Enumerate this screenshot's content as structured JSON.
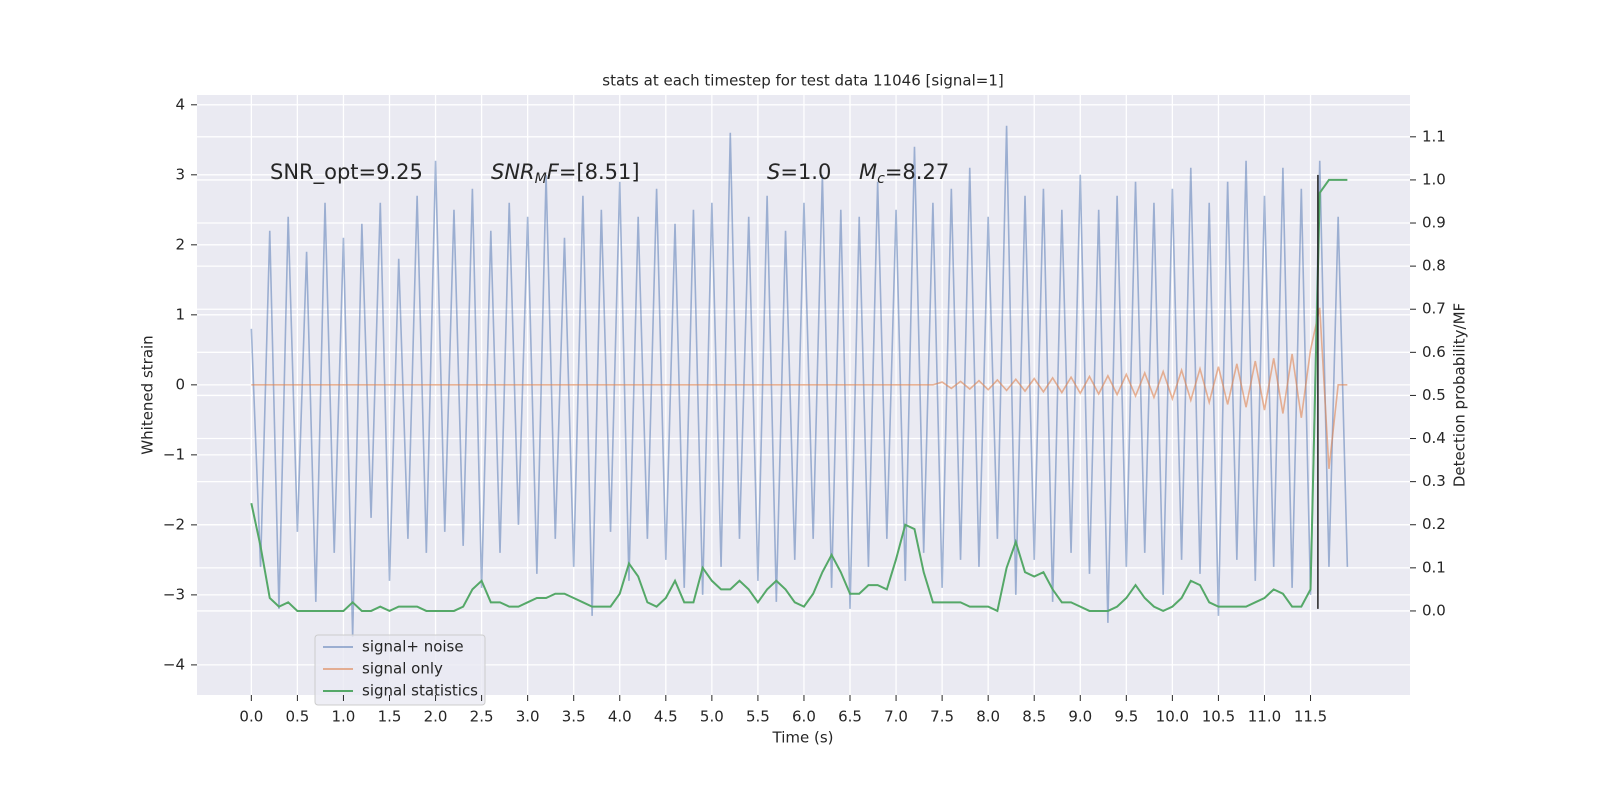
{
  "chart_data": {
    "type": "line",
    "title": "stats at each timestep for test data 11046 [signal=1]",
    "xlabel": "Time (s)",
    "ylabel": "Whitened strain",
    "y2label": "Detection probability/MF",
    "xlim": [
      -0.59,
      12.58
    ],
    "ylim": [
      -4.43,
      4.14
    ],
    "y2lim": [
      -0.195,
      1.197
    ],
    "xticks": [
      {
        "value": 0,
        "label": "0.0"
      },
      {
        "value": 0.5,
        "label": "0.5"
      },
      {
        "value": 1,
        "label": "1.0"
      },
      {
        "value": 1.5,
        "label": "1.5"
      },
      {
        "value": 2,
        "label": "2.0"
      },
      {
        "value": 2.5,
        "label": "2.5"
      },
      {
        "value": 3,
        "label": "3.0"
      },
      {
        "value": 3.5,
        "label": "3.5"
      },
      {
        "value": 4,
        "label": "4.0"
      },
      {
        "value": 4.5,
        "label": "4.5"
      },
      {
        "value": 5,
        "label": "5.0"
      },
      {
        "value": 5.5,
        "label": "5.5"
      },
      {
        "value": 6,
        "label": "6.0"
      },
      {
        "value": 6.5,
        "label": "6.5"
      },
      {
        "value": 7,
        "label": "7.0"
      },
      {
        "value": 7.5,
        "label": "7.5"
      },
      {
        "value": 8,
        "label": "8.0"
      },
      {
        "value": 8.5,
        "label": "8.5"
      },
      {
        "value": 9,
        "label": "9.0"
      },
      {
        "value": 9.5,
        "label": "9.5"
      },
      {
        "value": 10,
        "label": "10.0"
      },
      {
        "value": 10.5,
        "label": "10.5"
      },
      {
        "value": 11,
        "label": "11.0"
      },
      {
        "value": 11.5,
        "label": "11.5"
      }
    ],
    "yticks": [
      {
        "value": -4,
        "label": "−4"
      },
      {
        "value": -3,
        "label": "−3"
      },
      {
        "value": -2,
        "label": "−2"
      },
      {
        "value": -1,
        "label": "−1"
      },
      0,
      1,
      2,
      3,
      4
    ],
    "y2ticks": [
      {
        "value": 0,
        "label": "0.0"
      },
      {
        "value": 0.1,
        "label": "0.1"
      },
      {
        "value": 0.2,
        "label": "0.2"
      },
      {
        "value": 0.3,
        "label": "0.3"
      },
      {
        "value": 0.4,
        "label": "0.4"
      },
      {
        "value": 0.5,
        "label": "0.5"
      },
      {
        "value": 0.6,
        "label": "0.6"
      },
      {
        "value": 0.7,
        "label": "0.7"
      },
      {
        "value": 0.8,
        "label": "0.8"
      },
      {
        "value": 0.9,
        "label": "0.9"
      },
      {
        "value": 1,
        "label": "1.0"
      },
      {
        "value": 1.1,
        "label": "1.1"
      }
    ],
    "grid": true,
    "legend": "lower left",
    "annotations": [
      {
        "parts": [
          {
            "text": "SNR_opt=9.25"
          }
        ]
      },
      {
        "parts": [
          {
            "text": "SNR",
            "italic": true
          },
          {
            "text": "M",
            "italic": true,
            "sub": true
          },
          {
            "text": "F",
            "italic": true
          },
          {
            "text": "=[8.51]"
          }
        ]
      },
      {
        "parts": [
          {
            "text": "S",
            "italic": true
          },
          {
            "text": "=1.0"
          }
        ]
      },
      {
        "parts": [
          {
            "text": "M",
            "italic": true
          },
          {
            "text": "c",
            "italic": true,
            "sub": true
          },
          {
            "text": "=8.27"
          }
        ]
      }
    ],
    "vline": {
      "x": 11.58,
      "ymin": -3.2,
      "ymax": 3.0,
      "color": "#222222"
    },
    "x": [
      0,
      0.1,
      0.2,
      0.3,
      0.4,
      0.5,
      0.6,
      0.7,
      0.8,
      0.9,
      1,
      1.1,
      1.2,
      1.3,
      1.4,
      1.5,
      1.6,
      1.7,
      1.8,
      1.9,
      2,
      2.1,
      2.2,
      2.3,
      2.4,
      2.5,
      2.6,
      2.7,
      2.8,
      2.9,
      3,
      3.1,
      3.2,
      3.3,
      3.4,
      3.5,
      3.6,
      3.7,
      3.8,
      3.9,
      4,
      4.1,
      4.2,
      4.3,
      4.4,
      4.5,
      4.6,
      4.7,
      4.8,
      4.9,
      5,
      5.1,
      5.2,
      5.3,
      5.4,
      5.5,
      5.6,
      5.7,
      5.8,
      5.9,
      6,
      6.1,
      6.2,
      6.3,
      6.4,
      6.5,
      6.6,
      6.7,
      6.8,
      6.9,
      7,
      7.1,
      7.2,
      7.3,
      7.4,
      7.5,
      7.6,
      7.7,
      7.8,
      7.9,
      8,
      8.1,
      8.2,
      8.3,
      8.4,
      8.5,
      8.6,
      8.7,
      8.8,
      8.9,
      9,
      9.1,
      9.2,
      9.3,
      9.4,
      9.5,
      9.6,
      9.7,
      9.8,
      9.9,
      10,
      10.1,
      10.2,
      10.3,
      10.4,
      10.5,
      10.6,
      10.7,
      10.8,
      10.9,
      11,
      11.1,
      11.2,
      11.3,
      11.4,
      11.5,
      11.6,
      11.7,
      11.8,
      11.9
    ],
    "series": [
      {
        "name": "signal+ noise",
        "color": "#4c72b0",
        "opacity": 0.5,
        "values": [
          0.8,
          -2.6,
          2.2,
          -3.2,
          2.4,
          -2.1,
          1.9,
          -3.1,
          2.6,
          -2.4,
          2.1,
          -3.6,
          2.3,
          -1.9,
          2.6,
          -2.8,
          1.8,
          -2.2,
          2.7,
          -2.4,
          3.2,
          -2.1,
          2.5,
          -2.3,
          2.8,
          -2.9,
          2.2,
          -2.4,
          2.6,
          -2.0,
          2.4,
          -2.7,
          3.0,
          -2.2,
          2.1,
          -2.6,
          2.7,
          -3.3,
          2.5,
          -2.1,
          2.9,
          -2.8,
          2.4,
          -2.2,
          2.8,
          -2.5,
          2.3,
          -2.9,
          2.5,
          -3.0,
          2.6,
          -2.6,
          3.6,
          -2.2,
          2.4,
          -2.8,
          2.7,
          -3.1,
          2.2,
          -2.5,
          2.6,
          -2.2,
          3.0,
          -2.9,
          2.5,
          -3.2,
          2.4,
          -2.6,
          2.9,
          -2.2,
          2.5,
          -2.8,
          3.4,
          -2.4,
          2.6,
          -2.9,
          2.8,
          -2.5,
          3.1,
          -2.6,
          2.4,
          -2.2,
          3.7,
          -3.0,
          2.7,
          -2.5,
          2.8,
          -3.1,
          2.5,
          -2.4,
          3.0,
          -2.7,
          2.5,
          -3.4,
          2.7,
          -2.6,
          2.9,
          -2.4,
          2.6,
          -3.0,
          2.8,
          -2.5,
          3.1,
          -2.7,
          2.6,
          -3.3,
          2.9,
          -2.5,
          3.2,
          -2.8,
          2.7,
          -2.6,
          3.1,
          -2.9,
          2.8,
          -3.0,
          3.2,
          -2.6,
          2.4,
          -2.6
        ]
      },
      {
        "name": "signal only",
        "color": "#dd8452",
        "opacity": 0.6,
        "values": [
          0,
          0,
          0,
          0,
          0,
          0,
          0,
          0,
          0,
          0,
          0,
          0,
          0,
          0,
          0,
          0,
          0,
          0,
          0,
          0,
          0,
          0,
          0,
          0,
          0,
          0,
          0,
          0,
          0,
          0,
          0,
          0,
          0,
          0,
          0,
          0,
          0,
          0,
          0,
          0,
          0,
          0,
          0,
          0,
          0,
          0,
          0,
          0,
          0,
          0,
          0,
          0,
          0,
          0,
          0,
          0,
          0,
          0,
          0,
          0,
          0,
          0,
          0,
          0,
          0,
          0,
          0,
          0,
          0,
          0,
          0,
          0,
          0,
          0,
          0,
          0.04,
          -0.05,
          0.05,
          -0.06,
          0.06,
          -0.07,
          0.07,
          -0.08,
          0.08,
          -0.09,
          0.09,
          -0.1,
          0.1,
          -0.11,
          0.11,
          -0.12,
          0.12,
          -0.13,
          0.13,
          -0.14,
          0.15,
          -0.16,
          0.17,
          -0.18,
          0.19,
          -0.2,
          0.21,
          -0.22,
          0.23,
          -0.25,
          0.26,
          -0.28,
          0.3,
          -0.32,
          0.34,
          -0.36,
          0.38,
          -0.41,
          0.44,
          -0.47,
          0.5,
          1.1,
          -1.2,
          0,
          0
        ]
      },
      {
        "name": "signal statistics",
        "color": "#55a868",
        "opacity": 1,
        "axis": "y2",
        "values": [
          0.25,
          0.15,
          0.03,
          0.01,
          0.02,
          0.0,
          0.0,
          0.0,
          0.0,
          0.0,
          0.0,
          0.02,
          0.0,
          0.0,
          0.01,
          0.0,
          0.01,
          0.01,
          0.01,
          0.0,
          0.0,
          0.0,
          0.0,
          0.01,
          0.05,
          0.07,
          0.02,
          0.02,
          0.01,
          0.01,
          0.02,
          0.03,
          0.03,
          0.04,
          0.04,
          0.03,
          0.02,
          0.01,
          0.01,
          0.01,
          0.04,
          0.11,
          0.08,
          0.02,
          0.01,
          0.03,
          0.07,
          0.02,
          0.02,
          0.1,
          0.07,
          0.05,
          0.05,
          0.07,
          0.05,
          0.02,
          0.05,
          0.07,
          0.05,
          0.02,
          0.01,
          0.04,
          0.09,
          0.13,
          0.09,
          0.04,
          0.04,
          0.06,
          0.06,
          0.05,
          0.12,
          0.2,
          0.19,
          0.09,
          0.02,
          0.02,
          0.02,
          0.02,
          0.01,
          0.01,
          0.01,
          0.0,
          0.1,
          0.16,
          0.09,
          0.08,
          0.09,
          0.05,
          0.02,
          0.02,
          0.01,
          0.0,
          0.0,
          0.0,
          0.01,
          0.03,
          0.06,
          0.03,
          0.01,
          0.0,
          0.01,
          0.03,
          0.07,
          0.06,
          0.02,
          0.01,
          0.01,
          0.01,
          0.01,
          0.02,
          0.03,
          0.05,
          0.04,
          0.01,
          0.01,
          0.05,
          0.97,
          1.0,
          1.0,
          1.0
        ]
      }
    ]
  }
}
